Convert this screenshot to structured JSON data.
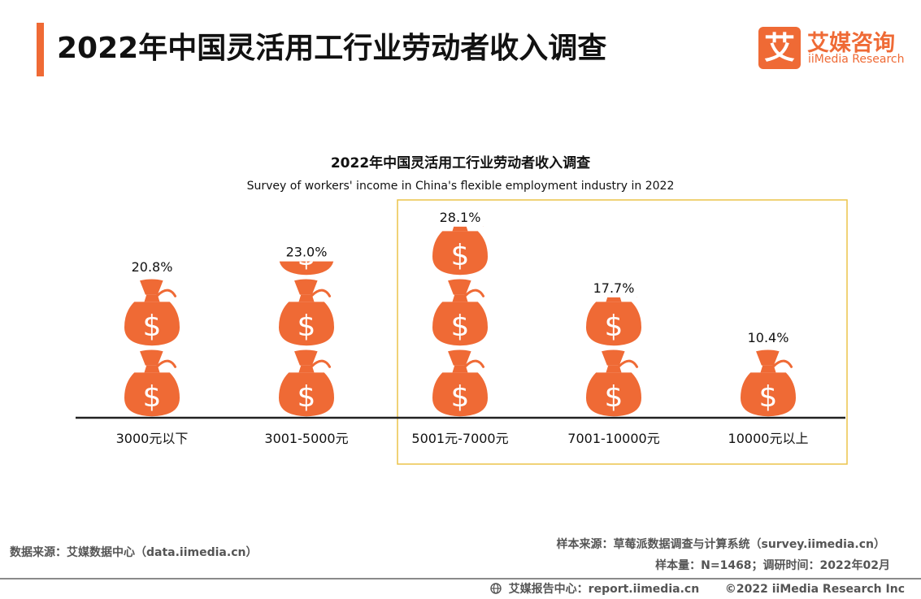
{
  "header": {
    "title": "2022年中国灵活用工行业劳动者收入调查",
    "logo_mark": "艾",
    "logo_cn": "艾媒咨询",
    "logo_en": "iiMedia Research"
  },
  "chart_data": {
    "type": "bar",
    "title": "2022年中国灵活用工行业劳动者收入调查",
    "subtitle": "Survey of workers' income in China's flexible employment industry in 2022",
    "categories": [
      "3000元以下",
      "3001-5000元",
      "5001元-7000元",
      "7001-10000元",
      "10000元以上"
    ],
    "values": [
      20.8,
      23.0,
      28.1,
      17.7,
      10.4
    ],
    "value_labels": [
      "20.8%",
      "23.0%",
      "28.1%",
      "17.7%",
      "10.4%"
    ],
    "unit": "%",
    "highlighted_categories": [
      "5001元-7000元",
      "7001-10000元",
      "10000元以上"
    ],
    "bar_color": "#ef6a35",
    "highlight_border_color": "#ecc44a",
    "icon": "money-bag-icon",
    "grid": false,
    "legend": "none"
  },
  "footer": {
    "source_left": "数据来源：艾媒数据中心（data.iimedia.cn）",
    "sample_source": "样本来源：草莓派数据调查与计算系统（survey.iimedia.cn）",
    "sample_size": "样本量：N=1468；调研时间：2022年02月",
    "report_center": "艾媒报告中心：report.iimedia.cn",
    "copyright": "©2022  iiMedia Research  Inc"
  }
}
